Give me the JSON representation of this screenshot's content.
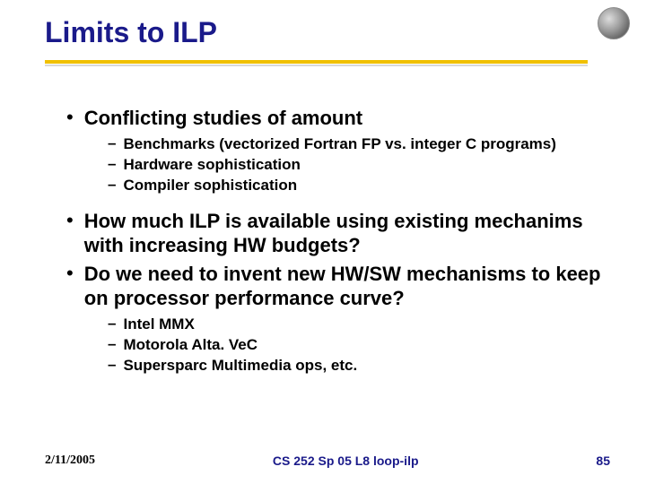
{
  "title": "Limits to ILP",
  "colors": {
    "title_color": "#1a1a8a",
    "underline_color": "#f0c000",
    "underline_shadow": "#d9d9d9",
    "body_text": "#000000",
    "footer_accent": "#1a1a8a",
    "background": "#ffffff"
  },
  "typography": {
    "title_fontsize": 32,
    "bullet_l1_fontsize": 22,
    "bullet_l2_fontsize": 17,
    "footer_fontsize": 14,
    "title_weight": "bold",
    "body_weight": "bold"
  },
  "bullets": {
    "b1": "Conflicting studies of amount",
    "b1_sub1": "Benchmarks (vectorized Fortran FP vs. integer C programs)",
    "b1_sub2": "Hardware sophistication",
    "b1_sub3": "Compiler sophistication",
    "b2": "How much ILP is available using existing mechanims with increasing HW budgets?",
    "b3": "Do we need to invent new HW/SW mechanisms to keep on processor performance curve?",
    "b3_sub1": "Intel MMX",
    "b3_sub2": "Motorola Alta. VeC",
    "b3_sub3": "Supersparc Multimedia ops, etc."
  },
  "footer": {
    "date": "2/11/2005",
    "center": "CS 252 Sp 05 L8 loop-ilp",
    "page": "85"
  }
}
